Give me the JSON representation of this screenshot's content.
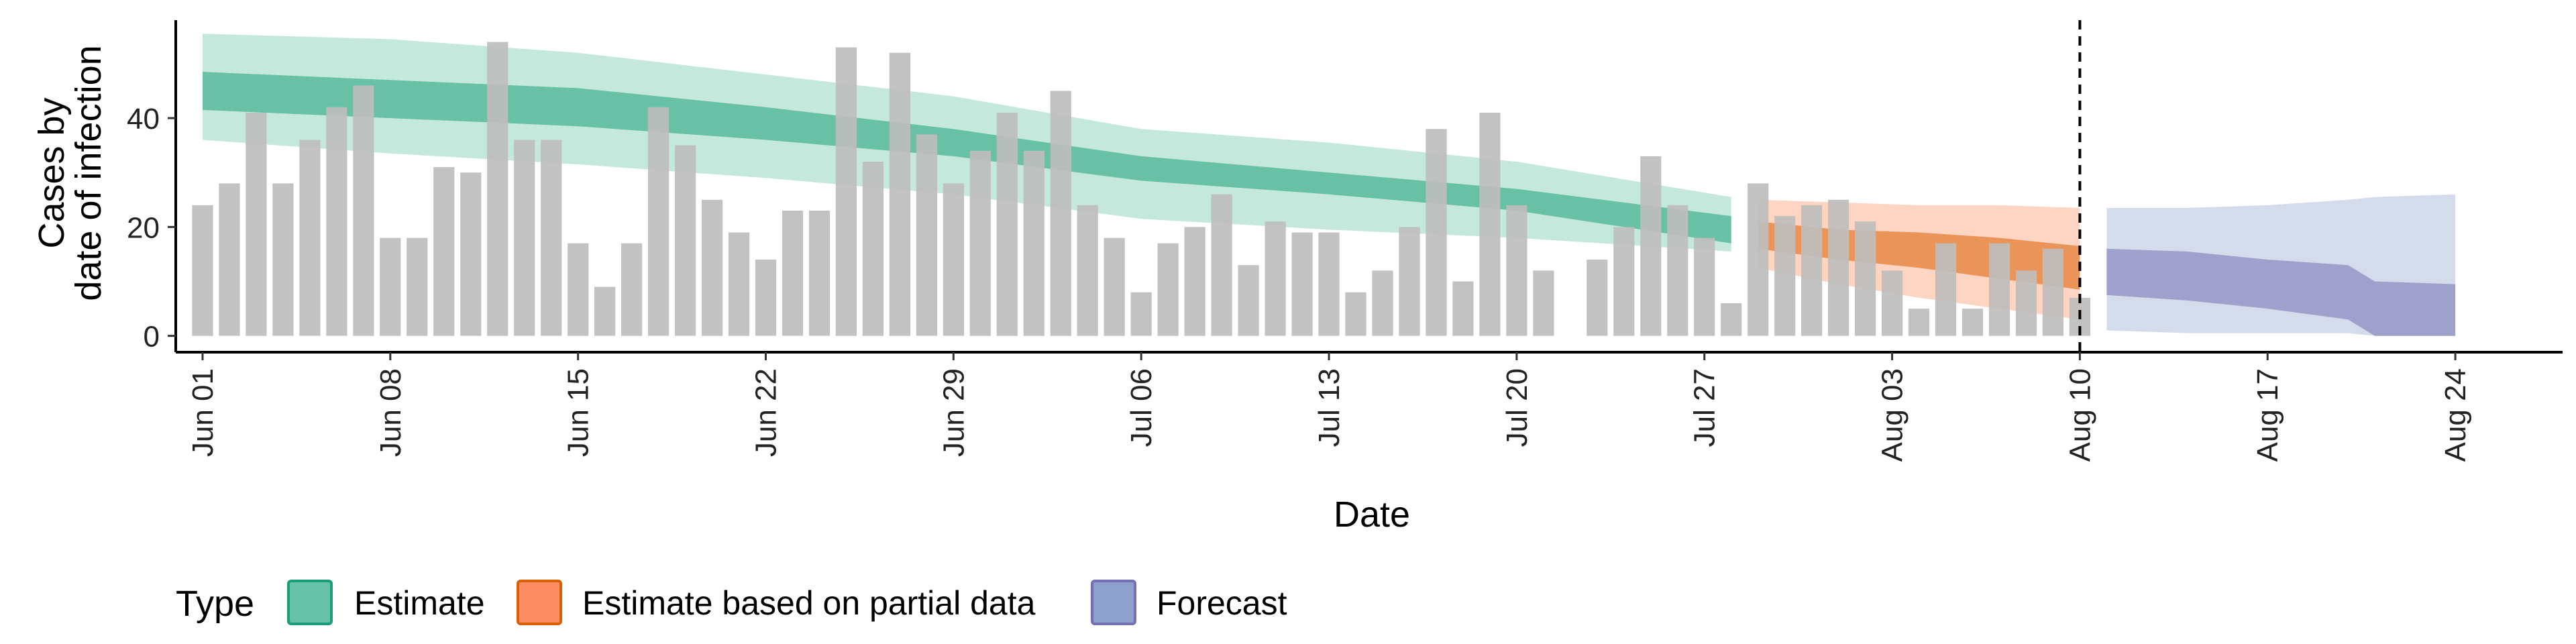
{
  "chart_data": {
    "type": "bar",
    "xlabel": "Date",
    "ylabel_lines": [
      "Cases by",
      "date of infection"
    ],
    "ylim": [
      -3,
      58
    ],
    "yticks": [
      0,
      20,
      40
    ],
    "x_start": "2020-05-31",
    "x_end": "2020-08-28",
    "x_ticks": [
      {
        "date": "2020-06-01",
        "label": "Jun 01"
      },
      {
        "date": "2020-06-08",
        "label": "Jun 08"
      },
      {
        "date": "2020-06-15",
        "label": "Jun 15"
      },
      {
        "date": "2020-06-22",
        "label": "Jun 22"
      },
      {
        "date": "2020-06-29",
        "label": "Jun 29"
      },
      {
        "date": "2020-07-06",
        "label": "Jul 06"
      },
      {
        "date": "2020-07-13",
        "label": "Jul 13"
      },
      {
        "date": "2020-07-20",
        "label": "Jul 20"
      },
      {
        "date": "2020-07-27",
        "label": "Jul 27"
      },
      {
        "date": "2020-08-03",
        "label": "Aug 03"
      },
      {
        "date": "2020-08-10",
        "label": "Aug 10"
      },
      {
        "date": "2020-08-17",
        "label": "Aug 17"
      },
      {
        "date": "2020-08-24",
        "label": "Aug 24"
      }
    ],
    "bars": {
      "start_date": "2020-06-01",
      "color": "#bdbdbd",
      "values": [
        24,
        28,
        41,
        28,
        36,
        42,
        46,
        18,
        18,
        31,
        30,
        54,
        36,
        36,
        17,
        9,
        17,
        42,
        35,
        25,
        19,
        14,
        23,
        23,
        53,
        32,
        52,
        37,
        28,
        34,
        41,
        34,
        45,
        24,
        18,
        8,
        17,
        20,
        26,
        13,
        21,
        19,
        19,
        8,
        12,
        20,
        38,
        10,
        41,
        24,
        12,
        null,
        14,
        20,
        33,
        24,
        18,
        6,
        28,
        22,
        24,
        25,
        21,
        12,
        5,
        17,
        5,
        17,
        12,
        16,
        7
      ]
    },
    "forecast_cutoff": {
      "date": "2020-08-10",
      "style": "dashed"
    },
    "series": [
      {
        "name": "Estimate",
        "color": "#1b9e77",
        "fill": "#66c2a5",
        "dates": [
          "2020-06-01",
          "2020-06-08",
          "2020-06-15",
          "2020-06-22",
          "2020-06-29",
          "2020-07-06",
          "2020-07-13",
          "2020-07-20",
          "2020-07-28"
        ],
        "inner_upper": [
          48.5,
          47,
          45.5,
          42,
          38,
          33,
          30,
          27,
          22
        ],
        "inner_lower": [
          41.5,
          40,
          38.5,
          36,
          33,
          28.5,
          26,
          23,
          17
        ],
        "outer_upper": [
          55.5,
          54.5,
          52,
          48,
          44,
          38,
          35.5,
          32,
          25.5
        ],
        "outer_lower": [
          36,
          33.5,
          31.5,
          29,
          26,
          21.5,
          19.5,
          18,
          15.5
        ]
      },
      {
        "name": "Estimate based on partial data",
        "color": "#d95f02",
        "fill": "#fc8d62",
        "dates": [
          "2020-07-29",
          "2020-08-01",
          "2020-08-04",
          "2020-08-07",
          "2020-08-10"
        ],
        "inner_upper": [
          21,
          19.5,
          19,
          18,
          16.5
        ],
        "inner_lower": [
          16,
          14,
          12.5,
          10.5,
          8.5
        ],
        "outer_upper": [
          25,
          24.5,
          24,
          24,
          23.5
        ],
        "outer_lower": [
          12.5,
          9.5,
          7,
          5,
          3
        ]
      },
      {
        "name": "Forecast",
        "color": "#7570b3",
        "fill": "#8da0cb",
        "dates": [
          "2020-08-11",
          "2020-08-14",
          "2020-08-17",
          "2020-08-20",
          "2020-08-21",
          "2020-08-24"
        ],
        "inner_upper": [
          16,
          15.5,
          14,
          13,
          10,
          9.5
        ],
        "inner_lower": [
          7.5,
          6.5,
          5,
          3,
          0,
          0
        ],
        "outer_upper": [
          23.5,
          23.5,
          24,
          25,
          25.5,
          26
        ],
        "outer_lower": [
          1,
          0.5,
          0.5,
          0.5,
          0,
          0
        ]
      }
    ],
    "legend": {
      "title": "Type",
      "position": "bottom",
      "items": [
        {
          "label": "Estimate",
          "fill": "#66c2a5",
          "border": "#1b9e77"
        },
        {
          "label": "Estimate based on partial data",
          "fill": "#fc8d62",
          "border": "#d95f02"
        },
        {
          "label": "Forecast",
          "fill": "#8da0cb",
          "border": "#7570b3"
        }
      ]
    },
    "grid": false
  }
}
